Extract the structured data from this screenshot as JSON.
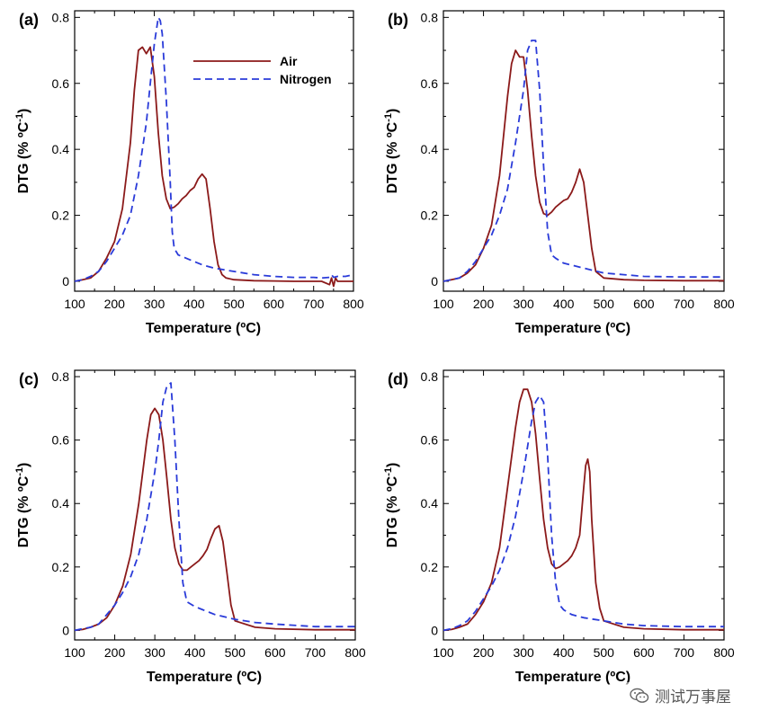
{
  "colors": {
    "air": "#8b1a1a",
    "nitrogen": "#2a3bd9",
    "axis": "#000000"
  },
  "watermark": {
    "text": "测试万事屋",
    "icon": "wechat-icon"
  },
  "chart_data": [
    {
      "type": "line",
      "panel": "(a)",
      "xlabel": "Temperature (ºC)",
      "ylabel_main": "DTG (% ºC",
      "ylabel_sup": "-1",
      "ylabel_close": ")",
      "xlim": [
        100,
        800
      ],
      "ylim": [
        -0.03,
        0.82
      ],
      "xticks": [
        100,
        200,
        300,
        400,
        500,
        600,
        700,
        800
      ],
      "yticks": [
        0,
        0.2,
        0.4,
        0.6,
        0.8
      ],
      "ytick_labels": [
        "0",
        "0.2",
        "0.4",
        "0.6",
        "0.8"
      ],
      "legend": {
        "position": "top-right",
        "entries": [
          "Air",
          "Nitrogen"
        ]
      },
      "series": [
        {
          "name": "Air",
          "style": "solid",
          "x": [
            100,
            120,
            140,
            160,
            180,
            200,
            220,
            240,
            250,
            260,
            270,
            280,
            290,
            300,
            310,
            320,
            330,
            340,
            350,
            360,
            370,
            380,
            390,
            400,
            410,
            420,
            430,
            440,
            450,
            460,
            470,
            480,
            500,
            550,
            600,
            650,
            700,
            720,
            740,
            745,
            750,
            755,
            760,
            780,
            800
          ],
          "y": [
            0.0,
            0.005,
            0.01,
            0.03,
            0.07,
            0.12,
            0.22,
            0.42,
            0.58,
            0.7,
            0.71,
            0.69,
            0.71,
            0.62,
            0.45,
            0.32,
            0.25,
            0.22,
            0.225,
            0.235,
            0.25,
            0.26,
            0.275,
            0.285,
            0.31,
            0.325,
            0.31,
            0.22,
            0.12,
            0.05,
            0.02,
            0.01,
            0.005,
            0.002,
            0.001,
            0.0,
            0.0,
            0.0,
            -0.01,
            0.01,
            -0.015,
            0.01,
            0.0,
            0.0,
            0.0
          ]
        },
        {
          "name": "Nitrogen",
          "style": "dashed",
          "x": [
            100,
            120,
            140,
            160,
            180,
            200,
            220,
            240,
            260,
            280,
            290,
            300,
            305,
            310,
            315,
            320,
            330,
            340,
            345,
            350,
            360,
            380,
            400,
            420,
            450,
            500,
            550,
            600,
            650,
            700,
            720,
            740,
            745,
            750,
            760,
            780,
            800
          ],
          "y": [
            0.0,
            0.005,
            0.015,
            0.03,
            0.06,
            0.1,
            0.14,
            0.2,
            0.32,
            0.48,
            0.6,
            0.72,
            0.76,
            0.8,
            0.79,
            0.75,
            0.55,
            0.3,
            0.15,
            0.1,
            0.08,
            0.07,
            0.06,
            0.05,
            0.04,
            0.03,
            0.02,
            0.015,
            0.012,
            0.012,
            0.01,
            0.012,
            0.02,
            0.012,
            0.015,
            0.015,
            0.02
          ]
        }
      ]
    },
    {
      "type": "line",
      "panel": "(b)",
      "xlabel": "Temperature (ºC)",
      "ylabel_main": "DTG (% ºC",
      "ylabel_sup": "-1",
      "ylabel_close": ")",
      "xlim": [
        100,
        800
      ],
      "ylim": [
        -0.03,
        0.82
      ],
      "xticks": [
        100,
        200,
        300,
        400,
        500,
        600,
        700,
        800
      ],
      "yticks": [
        0,
        0.2,
        0.4,
        0.6,
        0.8
      ],
      "ytick_labels": [
        "0",
        "0.2",
        "0.4",
        "0.6",
        "0.8"
      ],
      "series": [
        {
          "name": "Air",
          "style": "solid",
          "x": [
            100,
            120,
            140,
            160,
            180,
            200,
            220,
            240,
            260,
            270,
            280,
            290,
            300,
            310,
            320,
            330,
            340,
            350,
            360,
            370,
            380,
            390,
            400,
            410,
            420,
            430,
            440,
            450,
            460,
            470,
            480,
            500,
            550,
            600,
            700,
            800
          ],
          "y": [
            0.0,
            0.005,
            0.01,
            0.025,
            0.05,
            0.1,
            0.17,
            0.32,
            0.56,
            0.66,
            0.7,
            0.68,
            0.68,
            0.58,
            0.44,
            0.32,
            0.24,
            0.205,
            0.2,
            0.21,
            0.225,
            0.235,
            0.245,
            0.25,
            0.27,
            0.3,
            0.34,
            0.3,
            0.2,
            0.1,
            0.03,
            0.01,
            0.005,
            0.003,
            0.002,
            0.002
          ]
        },
        {
          "name": "Nitrogen",
          "style": "dashed",
          "x": [
            100,
            120,
            140,
            160,
            180,
            200,
            220,
            240,
            260,
            280,
            300,
            310,
            320,
            330,
            340,
            350,
            360,
            370,
            380,
            400,
            450,
            500,
            550,
            600,
            700,
            800
          ],
          "y": [
            0.0,
            0.005,
            0.01,
            0.03,
            0.06,
            0.1,
            0.14,
            0.2,
            0.28,
            0.42,
            0.58,
            0.7,
            0.73,
            0.73,
            0.58,
            0.35,
            0.15,
            0.08,
            0.07,
            0.055,
            0.04,
            0.025,
            0.02,
            0.015,
            0.013,
            0.013
          ]
        }
      ]
    },
    {
      "type": "line",
      "panel": "(c)",
      "xlabel": "Temperature (ºC)",
      "ylabel_main": "DTG (% ºC",
      "ylabel_sup": "-1",
      "ylabel_close": ")",
      "xlim": [
        100,
        800
      ],
      "ylim": [
        -0.03,
        0.82
      ],
      "xticks": [
        100,
        200,
        300,
        400,
        500,
        600,
        700,
        800
      ],
      "yticks": [
        0,
        0.2,
        0.4,
        0.6,
        0.8
      ],
      "ytick_labels": [
        "0",
        "0.2",
        "0.4",
        "0.6",
        "0.8"
      ],
      "series": [
        {
          "name": "Air",
          "style": "solid",
          "x": [
            100,
            120,
            140,
            160,
            180,
            200,
            220,
            240,
            260,
            280,
            290,
            300,
            310,
            320,
            330,
            340,
            350,
            360,
            370,
            380,
            390,
            400,
            410,
            420,
            430,
            440,
            450,
            460,
            470,
            480,
            490,
            500,
            550,
            600,
            700,
            800
          ],
          "y": [
            0.0,
            0.003,
            0.01,
            0.02,
            0.04,
            0.08,
            0.14,
            0.24,
            0.4,
            0.6,
            0.68,
            0.7,
            0.68,
            0.6,
            0.48,
            0.35,
            0.26,
            0.21,
            0.19,
            0.19,
            0.2,
            0.21,
            0.22,
            0.235,
            0.255,
            0.29,
            0.32,
            0.33,
            0.28,
            0.18,
            0.08,
            0.03,
            0.01,
            0.005,
            0.002,
            0.002
          ]
        },
        {
          "name": "Nitrogen",
          "style": "dashed",
          "x": [
            100,
            120,
            140,
            160,
            180,
            200,
            220,
            240,
            260,
            280,
            300,
            310,
            320,
            330,
            340,
            350,
            360,
            370,
            380,
            400,
            420,
            450,
            500,
            550,
            600,
            700,
            800
          ],
          "y": [
            0.0,
            0.005,
            0.01,
            0.02,
            0.05,
            0.08,
            0.12,
            0.17,
            0.24,
            0.35,
            0.5,
            0.6,
            0.72,
            0.77,
            0.78,
            0.6,
            0.35,
            0.15,
            0.09,
            0.075,
            0.065,
            0.05,
            0.035,
            0.025,
            0.02,
            0.012,
            0.012
          ]
        }
      ]
    },
    {
      "type": "line",
      "panel": "(d)",
      "xlabel": "Temperature (ºC)",
      "ylabel_main": "DTG (% ºC",
      "ylabel_sup": "-1",
      "ylabel_close": ")",
      "xlim": [
        100,
        800
      ],
      "ylim": [
        -0.03,
        0.82
      ],
      "xticks": [
        100,
        200,
        300,
        400,
        500,
        600,
        700,
        800
      ],
      "yticks": [
        0,
        0.2,
        0.4,
        0.6,
        0.8
      ],
      "ytick_labels": [
        "0",
        "0.2",
        "0.4",
        "0.6",
        "0.8"
      ],
      "series": [
        {
          "name": "Air",
          "style": "solid",
          "x": [
            100,
            120,
            140,
            160,
            180,
            200,
            220,
            240,
            260,
            280,
            290,
            300,
            310,
            320,
            330,
            340,
            350,
            360,
            370,
            380,
            390,
            400,
            410,
            420,
            430,
            440,
            450,
            455,
            460,
            465,
            470,
            480,
            490,
            500,
            550,
            600,
            700,
            800
          ],
          "y": [
            0.0,
            0.003,
            0.01,
            0.02,
            0.05,
            0.09,
            0.15,
            0.26,
            0.45,
            0.64,
            0.72,
            0.76,
            0.76,
            0.72,
            0.62,
            0.48,
            0.35,
            0.26,
            0.21,
            0.195,
            0.2,
            0.21,
            0.22,
            0.235,
            0.26,
            0.3,
            0.45,
            0.52,
            0.54,
            0.5,
            0.35,
            0.15,
            0.07,
            0.03,
            0.01,
            0.005,
            0.002,
            0.002
          ]
        },
        {
          "name": "Nitrogen",
          "style": "dashed",
          "x": [
            100,
            120,
            140,
            160,
            180,
            200,
            220,
            240,
            260,
            280,
            300,
            310,
            320,
            330,
            340,
            350,
            360,
            370,
            380,
            390,
            400,
            420,
            450,
            500,
            550,
            600,
            700,
            800
          ],
          "y": [
            0.0,
            0.005,
            0.015,
            0.03,
            0.06,
            0.1,
            0.14,
            0.19,
            0.26,
            0.36,
            0.5,
            0.58,
            0.66,
            0.72,
            0.74,
            0.72,
            0.55,
            0.3,
            0.15,
            0.08,
            0.065,
            0.05,
            0.04,
            0.03,
            0.02,
            0.015,
            0.012,
            0.012
          ]
        }
      ]
    }
  ]
}
